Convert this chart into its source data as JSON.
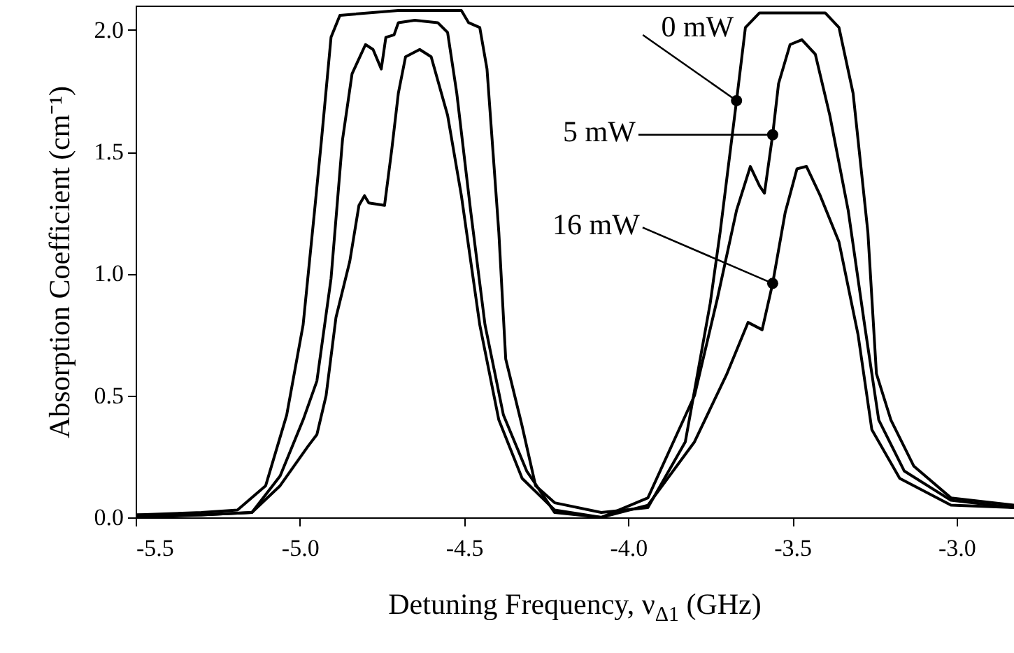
{
  "chart_data": {
    "type": "line",
    "xlabel": "Detuning Frequency, ν$_{Δ1}$ (GHz)",
    "ylabel": "Absorption Coefficient  (cm⁻¹)",
    "xlim": [
      -5.5,
      -2.825
    ],
    "ylim": [
      0,
      2.1
    ],
    "xticks": [
      {
        "value": -5.5,
        "label": "-5.5"
      },
      {
        "value": -5,
        "label": "-5.0"
      },
      {
        "value": -4.5,
        "label": "-4.5"
      },
      {
        "value": -4,
        "label": "-4.0"
      },
      {
        "value": -3.5,
        "label": "-3.5"
      },
      {
        "value": -3,
        "label": "-3.0"
      }
    ],
    "yticks": [
      {
        "value": 0,
        "label": "0.0"
      },
      {
        "value": 0.5,
        "label": "0.5"
      },
      {
        "value": 1,
        "label": "1.0"
      },
      {
        "value": 1.5,
        "label": "1.5"
      },
      {
        "value": 2,
        "label": "2.0"
      }
    ],
    "grid": false,
    "marker": "none",
    "line_style": "solid",
    "series": [
      {
        "name": "0 mW",
        "color": "#000000",
        "x": [
          -5.5,
          -5.3,
          -5.19,
          -5.104,
          -5.04,
          -4.99,
          -4.955,
          -4.934,
          -4.905,
          -4.878,
          -4.7,
          -4.508,
          -4.486,
          -4.452,
          -4.43,
          -4.394,
          -4.373,
          -4.324,
          -4.282,
          -4.224,
          -4.082,
          -3.94,
          -3.826,
          -3.75,
          -3.72,
          -3.67,
          -3.643,
          -3.6,
          -3.4,
          -3.358,
          -3.315,
          -3.27,
          -3.244,
          -3.2,
          -3.13,
          -3.017,
          -2.825
        ],
        "values": [
          0.01,
          0.02,
          0.03,
          0.13,
          0.42,
          0.79,
          1.26,
          1.55,
          1.97,
          2.06,
          2.08,
          2.08,
          2.03,
          2.01,
          1.84,
          1.17,
          0.65,
          0.38,
          0.13,
          0.06,
          0.02,
          0.04,
          0.31,
          0.88,
          1.17,
          1.71,
          2.01,
          2.07,
          2.07,
          2.01,
          1.74,
          1.17,
          0.59,
          0.4,
          0.21,
          0.08,
          0.05
        ]
      },
      {
        "name": "5 mW",
        "color": "#000000",
        "x": [
          -5.5,
          -5.3,
          -5.146,
          -5.06,
          -4.99,
          -4.948,
          -4.905,
          -4.87,
          -4.841,
          -4.8,
          -4.777,
          -4.752,
          -4.738,
          -4.713,
          -4.7,
          -4.65,
          -4.58,
          -4.55,
          -4.522,
          -4.48,
          -4.436,
          -4.38,
          -4.309,
          -4.224,
          -4.082,
          -3.94,
          -3.798,
          -3.728,
          -3.67,
          -3.628,
          -3.6,
          -3.585,
          -3.56,
          -3.542,
          -3.507,
          -3.471,
          -3.43,
          -3.386,
          -3.33,
          -3.28,
          -3.237,
          -3.159,
          -3.017,
          -2.825
        ],
        "values": [
          0.0,
          0.01,
          0.02,
          0.17,
          0.4,
          0.56,
          0.98,
          1.55,
          1.82,
          1.94,
          1.92,
          1.84,
          1.97,
          1.98,
          2.03,
          2.04,
          2.03,
          1.99,
          1.74,
          1.26,
          0.79,
          0.42,
          0.19,
          0.02,
          0.0,
          0.08,
          0.5,
          0.9,
          1.26,
          1.44,
          1.36,
          1.33,
          1.57,
          1.78,
          1.94,
          1.96,
          1.9,
          1.65,
          1.26,
          0.79,
          0.4,
          0.19,
          0.07,
          0.04
        ]
      },
      {
        "name": "16 mW",
        "color": "#000000",
        "x": [
          -5.5,
          -5.3,
          -5.146,
          -5.06,
          -4.976,
          -4.948,
          -4.92,
          -4.89,
          -4.848,
          -4.82,
          -4.803,
          -4.79,
          -4.742,
          -4.72,
          -4.7,
          -4.678,
          -4.635,
          -4.6,
          -4.55,
          -4.508,
          -4.452,
          -4.394,
          -4.323,
          -4.224,
          -4.082,
          -3.94,
          -3.798,
          -3.699,
          -3.635,
          -3.592,
          -3.56,
          -3.522,
          -3.486,
          -3.457,
          -3.415,
          -3.358,
          -3.3,
          -3.258,
          -3.173,
          -3.017,
          -2.825
        ],
        "values": [
          0.01,
          0.01,
          0.02,
          0.13,
          0.29,
          0.34,
          0.5,
          0.82,
          1.05,
          1.28,
          1.32,
          1.29,
          1.28,
          1.51,
          1.74,
          1.89,
          1.92,
          1.89,
          1.65,
          1.32,
          0.79,
          0.4,
          0.16,
          0.03,
          0.0,
          0.05,
          0.31,
          0.59,
          0.8,
          0.77,
          0.96,
          1.25,
          1.43,
          1.44,
          1.32,
          1.13,
          0.75,
          0.36,
          0.16,
          0.05,
          0.04
        ]
      }
    ]
  }
}
